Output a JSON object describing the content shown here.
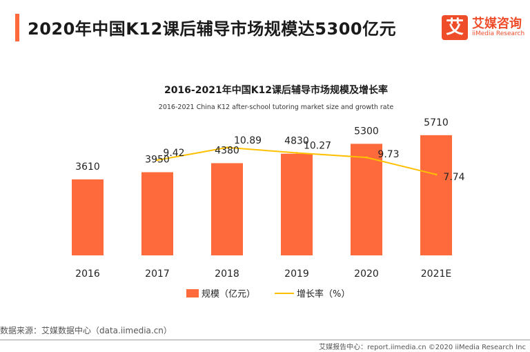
{
  "header": {
    "title": "2020年中国K12课后辅导市场规模达5300亿元"
  },
  "logo": {
    "mark": "艾",
    "name_cn": "艾媒咨询",
    "name_en": "iiMedia Research",
    "icon": "iimedia-logo-icon"
  },
  "chart_data": {
    "type": "bar",
    "title": "2016-2021年中国K12课后辅导市场规模及增长率",
    "subtitle": "2016-2021 China K12 after-school tutoring market size and growth rate",
    "categories": [
      "2016",
      "2017",
      "2018",
      "2019",
      "2020",
      "2021E"
    ],
    "series": [
      {
        "name": "规模（亿元）",
        "type": "bar",
        "values": [
          3610,
          3950,
          4380,
          4830,
          5300,
          5710
        ],
        "labels": [
          "3610",
          "3950",
          "4380",
          "4830",
          "5300",
          "5710"
        ],
        "color": "#ff6a3d"
      },
      {
        "name": "增长率（%）",
        "type": "line",
        "values": [
          null,
          9.42,
          10.89,
          10.27,
          9.73,
          7.74
        ],
        "labels": [
          "",
          "9.42",
          "10.89",
          "10.27",
          "9.73",
          "7.74"
        ],
        "color": "#ffc000"
      }
    ],
    "legend_position": "bottom",
    "grid": false
  },
  "source": "数据来源：艾媒数据中心（data.iimedia.cn）",
  "footer": "艾媒报告中心：report.iimedia.cn    ©2020  iiMedia Research Inc"
}
